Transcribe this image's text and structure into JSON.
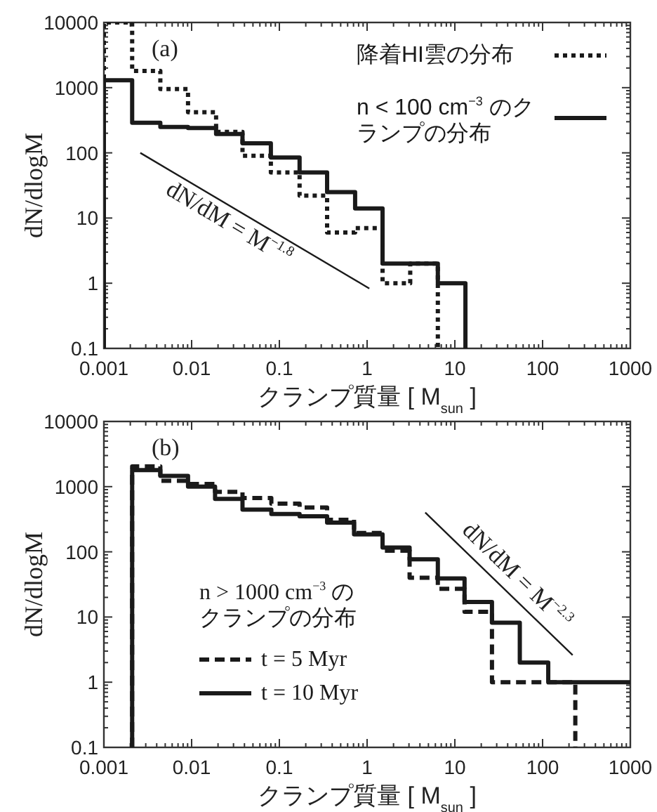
{
  "chart_data": [
    {
      "type": "step",
      "xlabel": "クランプ質量 [ M$_{sun}$ ]",
      "ylabel": "dN/dlogM",
      "log": "xy",
      "grid": false,
      "legend": "top right",
      "xlim": [
        0.001,
        1000
      ],
      "xticks": [
        0.001,
        0.01,
        0.1,
        1,
        10,
        100,
        1000
      ],
      "ylim": [
        0.1,
        10000
      ],
      "yticks": [
        0.1,
        1,
        10,
        100,
        1000,
        10000
      ],
      "annotations": [
        "(a)",
        "dN/dM = M$^{−1.8}$"
      ],
      "series": [
        {
          "name": "降着HI雲の分布",
          "color": "#1a1a1a",
          "line_style": "dotted",
          "x": [
            0.001,
            0.001,
            0.0021,
            0.0044,
            0.0091,
            0.019,
            0.038,
            0.08,
            0.17,
            0.35,
            0.73,
            1.5,
            3.1,
            6.4
          ],
          "values": [
            0.1,
            10000,
            1800,
            950,
            420,
            210,
            90,
            50,
            22,
            6,
            7,
            1,
            2,
            0.1
          ]
        },
        {
          "name": "n < 100 cm$^{−3}$ のクランプの分布",
          "color": "#1a1a1a",
          "line_style": "solid",
          "x": [
            0.001,
            0.001,
            0.0021,
            0.0044,
            0.0091,
            0.019,
            0.038,
            0.08,
            0.17,
            0.35,
            0.73,
            1.5,
            6.4,
            13.2
          ],
          "values": [
            0.1,
            1300,
            290,
            250,
            240,
            195,
            140,
            85,
            50,
            25,
            14,
            2,
            1,
            0.1
          ]
        },
        {
          "type": "line",
          "color": "#1a1a1a",
          "line_style": "solid",
          "x": [
            0.0026,
            1.06
          ],
          "values": [
            100,
            0.83
          ]
        }
      ]
    },
    {
      "type": "step",
      "xlabel": "クランプ質量 [ M$_{sun}$ ]",
      "ylabel": "dN/dlogM",
      "log": "xy",
      "grid": false,
      "legend": "left",
      "legend_title": "n > 1000 cm$^{−3}$ のクランプの分布",
      "xlim": [
        0.001,
        1000
      ],
      "xticks": [
        0.001,
        0.01,
        0.1,
        1,
        10,
        100,
        1000
      ],
      "ylim": [
        0.1,
        10000
      ],
      "yticks": [
        0.1,
        1,
        10,
        100,
        1000,
        10000
      ],
      "annotations": [
        "(b)",
        "dN/dM = M$^{−2.3}$"
      ],
      "series": [
        {
          "name": "t = 5 Myr",
          "color": "#1a1a1a",
          "line_style": "dashed",
          "x": [
            0.0021,
            0.0021,
            0.0044,
            0.0091,
            0.0185,
            0.038,
            0.081,
            0.17,
            0.35,
            0.71,
            1.5,
            3.05,
            6.4,
            12.9,
            26.5,
            236
          ],
          "values": [
            0.1,
            2040,
            1230,
            1100,
            830,
            670,
            550,
            480,
            310,
            195,
            104,
            40,
            27,
            12,
            1,
            0.1
          ]
        },
        {
          "name": "t = 10 Myr",
          "color": "#1a1a1a",
          "line_style": "solid",
          "x": [
            0.0021,
            0.0021,
            0.0044,
            0.0091,
            0.0185,
            0.038,
            0.081,
            0.17,
            0.35,
            0.71,
            1.5,
            3.05,
            6.4,
            12.9,
            26.5,
            55,
            116,
            1000
          ],
          "values": [
            0.1,
            1790,
            1460,
            1000,
            650,
            445,
            380,
            350,
            280,
            185,
            116,
            77,
            39,
            17,
            8.2,
            2,
            1,
            1
          ]
        },
        {
          "type": "line",
          "color": "#1a1a1a",
          "line_style": "solid",
          "x": [
            4.6,
            220
          ],
          "values": [
            400,
            2.6
          ]
        }
      ]
    }
  ]
}
